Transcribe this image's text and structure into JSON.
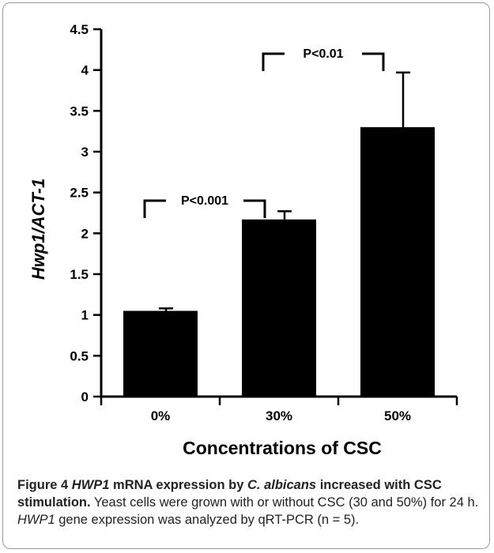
{
  "chart_data": {
    "type": "bar",
    "categories": [
      "0%",
      "30%",
      "50%"
    ],
    "values": [
      1.05,
      2.17,
      3.3
    ],
    "errors": [
      0.03,
      0.1,
      0.67
    ],
    "xlabel": "Concentrations of CSC",
    "ylabel": "Hwp1/ACT-1",
    "ylim": [
      0,
      4.5
    ],
    "yticks": [
      "0",
      "0.5",
      "1",
      "1.5",
      "2",
      "2.5",
      "3",
      "3.5",
      "4",
      "4.5"
    ],
    "grid": false,
    "bar_color": "#000000",
    "comparisons": [
      {
        "from": 0,
        "to": 1,
        "label": "P<0.001",
        "level": 2.4
      },
      {
        "from": 1,
        "to": 2,
        "label": "P<0.01",
        "level": 4.2
      }
    ]
  },
  "caption": {
    "figure_label": "Figure 4",
    "title_gene": "HWP1",
    "title_mid": " mRNA expression by ",
    "title_species": "C. albicans",
    "title_end": " increased with CSC stimulation.",
    "body_1": " Yeast cells were grown with or without CSC (30 and 50%) for 24 h. ",
    "body_gene": "HWP1",
    "body_2": " gene expression was analyzed by qRT-PCR (n = 5)."
  }
}
